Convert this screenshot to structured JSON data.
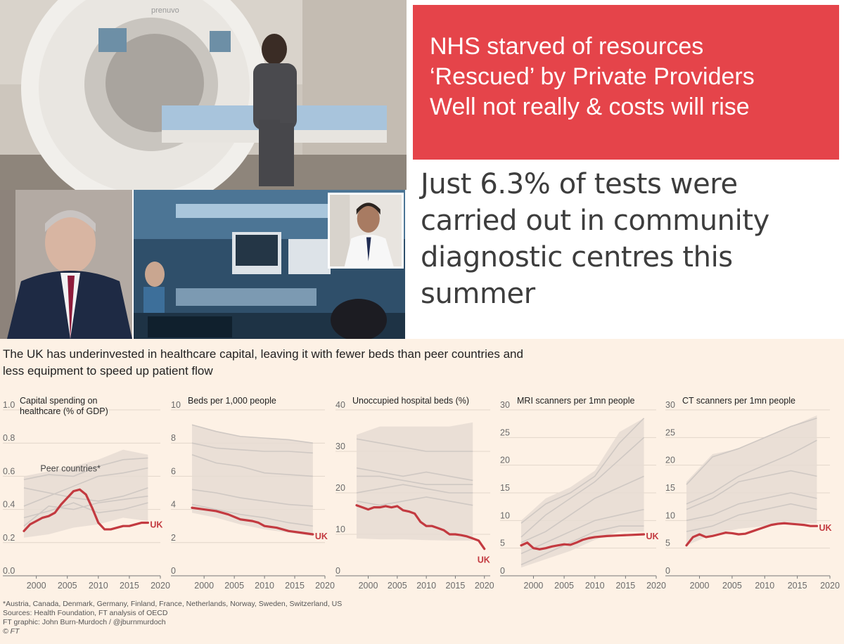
{
  "banner": {
    "lines": [
      "NHS starved of resources",
      "‘Rescued’ by Private Providers",
      "Well not really & costs will rise"
    ]
  },
  "quote": {
    "text": "Just 6.3% of tests were carried out in community diagnostic centres this summer"
  },
  "photos": {
    "mri_brand": "prenuvo"
  },
  "colors": {
    "banner_bg": "#e5444a",
    "chart_bg": "#fdf1e5",
    "uk_line": "#c33a40",
    "peer_band": "#e6dcd3",
    "peer_line": "#cfc8c3"
  },
  "chart": {
    "title": "The UK has underinvested in healthcare capital, leaving it with fewer beds than peer countries and less equipment to speed up patient flow",
    "footnotes": [
      "*Austria, Canada, Denmark, Germany, Finland, France, Netherlands, Norway, Sweden, Switzerland, US",
      "Sources: Health Foundation, FT analysis of OECD",
      "FT graphic: John Burn-Murdoch / @jburnmurdoch",
      "© FT"
    ]
  },
  "chart_data": [
    {
      "type": "line",
      "title": "Capital spending on healthcare (% of GDP)",
      "title_lines": [
        "Capital spending on",
        "healthcare (% of GDP)"
      ],
      "ylim": [
        0,
        1.0
      ],
      "yticks": [
        "0.0",
        "0.2",
        "0.4",
        "0.6",
        "0.8",
        "1.0"
      ],
      "xlim": [
        1998,
        2020
      ],
      "xticks": [
        "2000",
        "2005",
        "2010",
        "2015",
        "2020"
      ],
      "annotation": "Peer countries*",
      "series": [
        {
          "name": "UK",
          "x": [
            1998,
            1999,
            2000,
            2001,
            2002,
            2003,
            2004,
            2005,
            2006,
            2007,
            2008,
            2009,
            2010,
            2011,
            2012,
            2013,
            2014,
            2015,
            2016,
            2017,
            2018
          ],
          "values": [
            0.27,
            0.31,
            0.33,
            0.35,
            0.36,
            0.38,
            0.43,
            0.47,
            0.51,
            0.52,
            0.49,
            0.41,
            0.32,
            0.28,
            0.28,
            0.29,
            0.3,
            0.3,
            0.31,
            0.32,
            0.32
          ]
        }
      ],
      "peer_band": {
        "x": [
          1998,
          2002,
          2006,
          2010,
          2014,
          2018
        ],
        "low": [
          0.23,
          0.25,
          0.29,
          0.31,
          0.35,
          0.33
        ],
        "high": [
          0.6,
          0.63,
          0.66,
          0.7,
          0.76,
          0.73
        ]
      },
      "peer_lines": [
        {
          "x": [
            1998,
            2002,
            2006,
            2010,
            2014,
            2018
          ],
          "values": [
            0.58,
            0.61,
            0.6,
            0.66,
            0.7,
            0.71
          ]
        },
        {
          "x": [
            1998,
            2002,
            2006,
            2010,
            2014,
            2018
          ],
          "values": [
            0.42,
            0.48,
            0.54,
            0.6,
            0.62,
            0.65
          ]
        },
        {
          "x": [
            1998,
            2002,
            2006,
            2010,
            2014,
            2018
          ],
          "values": [
            0.3,
            0.42,
            0.4,
            0.44,
            0.46,
            0.48
          ]
        },
        {
          "x": [
            1998,
            2002,
            2006,
            2010,
            2014,
            2018
          ],
          "values": [
            0.53,
            0.5,
            0.47,
            0.45,
            0.48,
            0.53
          ]
        },
        {
          "x": [
            1998,
            2002,
            2006,
            2010,
            2014,
            2018
          ],
          "values": [
            0.35,
            0.39,
            0.44,
            0.38,
            0.4,
            0.44
          ]
        }
      ]
    },
    {
      "type": "line",
      "title": "Beds per 1,000 people",
      "title_lines": [
        "Beds per 1,000 people"
      ],
      "ylim": [
        0,
        10
      ],
      "yticks": [
        "0",
        "2",
        "4",
        "6",
        "8",
        "10"
      ],
      "xlim": [
        1998,
        2020
      ],
      "xticks": [
        "2000",
        "2005",
        "2010",
        "2015",
        "2020"
      ],
      "series": [
        {
          "name": "UK",
          "x": [
            1998,
            2000,
            2002,
            2004,
            2006,
            2008,
            2009,
            2010,
            2012,
            2014,
            2016,
            2018
          ],
          "values": [
            4.1,
            4.0,
            3.9,
            3.7,
            3.4,
            3.3,
            3.2,
            3.0,
            2.9,
            2.7,
            2.6,
            2.5
          ]
        }
      ],
      "peer_band": {
        "x": [
          1998,
          2002,
          2006,
          2010,
          2014,
          2018
        ],
        "low": [
          3.8,
          3.5,
          3.1,
          2.8,
          2.6,
          2.4
        ],
        "high": [
          9.1,
          8.7,
          8.4,
          8.3,
          8.2,
          8.0
        ]
      },
      "peer_lines": [
        {
          "x": [
            1998,
            2002,
            2006,
            2010,
            2014,
            2018
          ],
          "values": [
            9.1,
            8.7,
            8.4,
            8.3,
            8.2,
            8.0
          ]
        },
        {
          "x": [
            1998,
            2002,
            2006,
            2010,
            2014,
            2018
          ],
          "values": [
            8.0,
            7.7,
            7.6,
            7.5,
            7.5,
            7.4
          ]
        },
        {
          "x": [
            1998,
            2002,
            2006,
            2010,
            2014,
            2018
          ],
          "values": [
            7.3,
            6.8,
            6.6,
            6.2,
            6.1,
            6.0
          ]
        },
        {
          "x": [
            1998,
            2002,
            2006,
            2010,
            2014,
            2018
          ],
          "values": [
            5.2,
            5.0,
            4.7,
            4.5,
            4.3,
            4.2
          ]
        },
        {
          "x": [
            1998,
            2002,
            2006,
            2010,
            2014,
            2018
          ],
          "values": [
            4.3,
            4.0,
            3.7,
            3.5,
            3.2,
            3.0
          ]
        }
      ]
    },
    {
      "type": "line",
      "title": "Unoccupied hospital beds (%)",
      "title_lines": [
        "Unoccupied hospital beds (%)"
      ],
      "ylim": [
        0,
        40
      ],
      "yticks": [
        "0",
        "10",
        "20",
        "30",
        "40"
      ],
      "xlim": [
        1998,
        2021
      ],
      "xticks": [
        "2000",
        "2005",
        "2010",
        "2015",
        "2020"
      ],
      "series": [
        {
          "name": "UK",
          "x": [
            1998,
            1999,
            2000,
            2001,
            2002,
            2003,
            2004,
            2005,
            2006,
            2007,
            2008,
            2009,
            2010,
            2011,
            2012,
            2013,
            2014,
            2015,
            2016,
            2017,
            2018,
            2019,
            2020
          ],
          "values": [
            17,
            16.5,
            16,
            16.5,
            16.5,
            16.8,
            16.5,
            16.8,
            15.8,
            15.5,
            15.0,
            13.0,
            12.0,
            12.0,
            11.5,
            11.0,
            10.0,
            10.0,
            9.8,
            9.5,
            9.0,
            8.5,
            6.5
          ]
        }
      ],
      "peer_band": {
        "x": [
          1998,
          2002,
          2006,
          2010,
          2014,
          2018
        ],
        "low": [
          9,
          8.8,
          8.8,
          8.6,
          8.5,
          8.5
        ],
        "high": [
          34,
          36,
          36,
          36,
          36,
          37
        ]
      },
      "peer_lines": [
        {
          "x": [
            1998,
            2002,
            2006,
            2010,
            2014,
            2018
          ],
          "values": [
            33,
            32,
            31,
            30,
            30,
            30
          ]
        },
        {
          "x": [
            1998,
            2002,
            2006,
            2010,
            2014,
            2018
          ],
          "values": [
            26,
            25,
            24,
            25,
            24,
            23
          ]
        },
        {
          "x": [
            1998,
            2002,
            2006,
            2010,
            2014,
            2018
          ],
          "values": [
            24,
            24,
            23,
            22,
            22,
            22
          ]
        },
        {
          "x": [
            1998,
            2002,
            2006,
            2010,
            2014,
            2018
          ],
          "values": [
            20,
            21,
            22,
            21,
            20,
            20
          ]
        },
        {
          "x": [
            1998,
            2002,
            2006,
            2010,
            2014,
            2018
          ],
          "values": [
            18,
            17,
            18,
            19,
            18,
            17
          ]
        }
      ]
    },
    {
      "type": "line",
      "title": "MRI scanners per 1mn people",
      "title_lines": [
        "MRI scanners per 1mn people"
      ],
      "ylim": [
        0,
        30
      ],
      "yticks": [
        "0",
        "5",
        "10",
        "15",
        "20",
        "25",
        "30"
      ],
      "xlim": [
        1998,
        2020
      ],
      "xticks": [
        "2000",
        "2005",
        "2010",
        "2015",
        "2020"
      ],
      "series": [
        {
          "name": "UK",
          "x": [
            1998,
            1999,
            2000,
            2001,
            2002,
            2003,
            2004,
            2005,
            2006,
            2007,
            2008,
            2009,
            2010,
            2012,
            2014,
            2016,
            2018
          ],
          "values": [
            5.5,
            6.0,
            5.0,
            4.8,
            5.0,
            5.3,
            5.5,
            5.7,
            5.6,
            6.0,
            6.5,
            6.8,
            7.0,
            7.2,
            7.3,
            7.4,
            7.5
          ]
        }
      ],
      "peer_band": {
        "x": [
          1998,
          2002,
          2006,
          2010,
          2014,
          2018
        ],
        "low": [
          1.5,
          3.0,
          4.5,
          6.5,
          8.0,
          8.0
        ],
        "high": [
          10,
          14,
          16,
          19,
          26,
          28.5
        ]
      },
      "peer_lines": [
        {
          "x": [
            1998,
            2002,
            2006,
            2010,
            2014,
            2018
          ],
          "values": [
            9.5,
            13,
            15,
            18,
            24,
            28.5
          ]
        },
        {
          "x": [
            1998,
            2002,
            2006,
            2010,
            2014,
            2018
          ],
          "values": [
            7,
            11,
            14,
            17,
            21,
            25
          ]
        },
        {
          "x": [
            1998,
            2002,
            2006,
            2010,
            2014,
            2018
          ],
          "values": [
            6,
            8,
            11,
            14,
            16,
            18
          ]
        },
        {
          "x": [
            1998,
            2002,
            2006,
            2010,
            2014,
            2018
          ],
          "values": [
            4,
            6,
            8,
            10,
            11,
            12
          ]
        },
        {
          "x": [
            1998,
            2002,
            2006,
            2010,
            2014,
            2018
          ],
          "values": [
            2,
            4,
            6,
            8,
            9,
            9
          ]
        }
      ]
    },
    {
      "type": "line",
      "title": "CT scanners per 1mn people",
      "title_lines": [
        "CT scanners per 1mn people"
      ],
      "ylim": [
        0,
        30
      ],
      "yticks": [
        "0",
        "5",
        "10",
        "15",
        "20",
        "25",
        "30"
      ],
      "xlim": [
        1998,
        2020
      ],
      "xticks": [
        "2000",
        "2005",
        "2010",
        "2015",
        "2020"
      ],
      "series": [
        {
          "name": "UK",
          "x": [
            1998,
            1999,
            2000,
            2001,
            2002,
            2003,
            2004,
            2005,
            2006,
            2007,
            2008,
            2009,
            2010,
            2011,
            2012,
            2013,
            2014,
            2015,
            2016,
            2017,
            2018
          ],
          "values": [
            5.5,
            7.0,
            7.5,
            7.0,
            7.2,
            7.5,
            7.8,
            7.7,
            7.5,
            7.6,
            8.0,
            8.4,
            8.8,
            9.2,
            9.4,
            9.5,
            9.4,
            9.3,
            9.2,
            9.0,
            9.0
          ]
        }
      ],
      "peer_band": {
        "x": [
          1998,
          2002,
          2006,
          2010,
          2014,
          2018
        ],
        "low": [
          5.5,
          7.5,
          8.5,
          9.0,
          9.5,
          9.5
        ],
        "high": [
          17,
          22,
          23,
          25,
          27,
          29
        ]
      },
      "peer_lines": [
        {
          "x": [
            1998,
            2002,
            2006,
            2010,
            2014,
            2018
          ],
          "values": [
            16.5,
            21.5,
            23,
            25,
            27,
            28.5
          ]
        },
        {
          "x": [
            1998,
            2002,
            2006,
            2010,
            2014,
            2018
          ],
          "values": [
            13,
            15,
            18,
            20,
            22,
            24.5
          ]
        },
        {
          "x": [
            1998,
            2002,
            2006,
            2010,
            2014,
            2018
          ],
          "values": [
            12,
            14,
            17,
            18,
            19,
            18
          ]
        },
        {
          "x": [
            1998,
            2002,
            2006,
            2010,
            2014,
            2018
          ],
          "values": [
            10,
            11,
            13,
            14,
            15,
            14
          ]
        },
        {
          "x": [
            1998,
            2002,
            2006,
            2010,
            2014,
            2018
          ],
          "values": [
            8,
            9,
            11,
            12,
            13,
            12
          ]
        }
      ]
    }
  ]
}
